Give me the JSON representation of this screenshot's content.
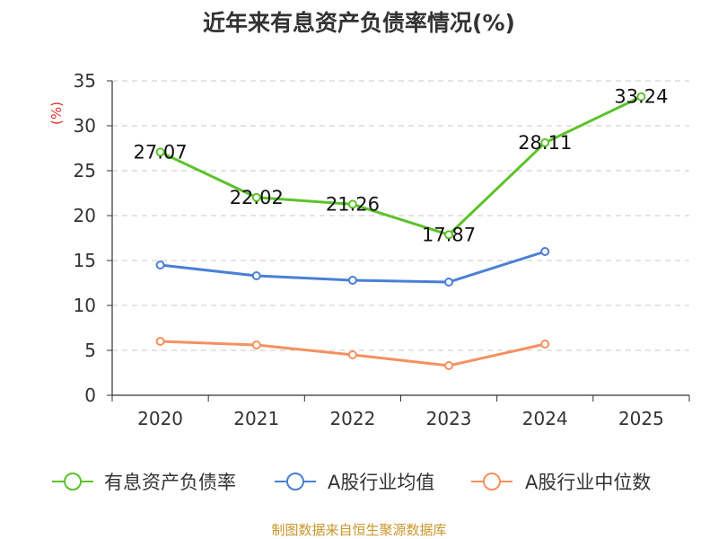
{
  "chart_data": {
    "type": "line",
    "title": "近年来有息资产负债率情况(%)",
    "ylabel": "(%)",
    "xlabel": "",
    "ylim": [
      0,
      35
    ],
    "yticks": [
      0,
      5,
      10,
      15,
      20,
      25,
      30,
      35
    ],
    "grid": true,
    "categories": [
      "2020",
      "2021",
      "2022",
      "2023",
      "2024",
      "2025"
    ],
    "series": [
      {
        "name": "有息资产负债率",
        "color": "#5cc22a",
        "values": [
          27.07,
          22.02,
          21.26,
          17.87,
          28.11,
          33.24
        ],
        "labels": [
          "27.07",
          "22.02",
          "21.26",
          "17.87",
          "28.11",
          "33.24"
        ],
        "show_labels": true
      },
      {
        "name": "A股行业均值",
        "color": "#4a7fd6",
        "values": [
          14.5,
          13.3,
          12.8,
          12.6,
          16.0,
          null
        ],
        "show_labels": false
      },
      {
        "name": "A股行业中位数",
        "color": "#f59060",
        "values": [
          6.0,
          5.6,
          4.5,
          3.3,
          5.7,
          null
        ],
        "show_labels": false
      }
    ],
    "legend_position": "bottom",
    "source": "制图数据来自恒生聚源数据库"
  }
}
